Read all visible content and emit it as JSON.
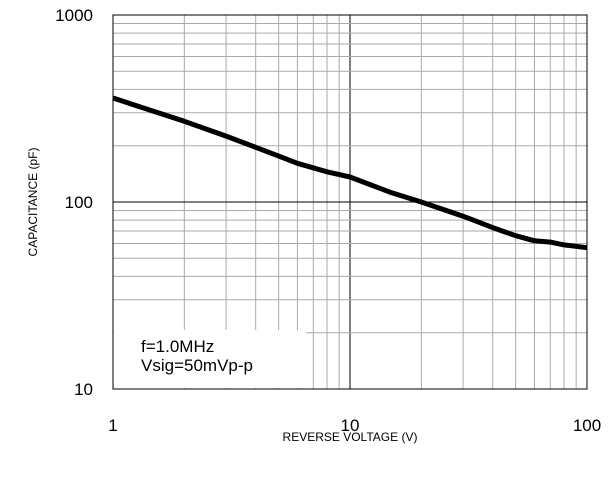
{
  "chart_data": {
    "type": "line",
    "xlabel": "REVERSE VOLTAGE (V)",
    "ylabel": "CAPACITANCE (pF)",
    "x_scale": "log",
    "y_scale": "log",
    "xlim": [
      1,
      100
    ],
    "ylim": [
      10,
      1000
    ],
    "grid": true,
    "x_ticks": [
      {
        "value": 1,
        "label": "1"
      },
      {
        "value": 10,
        "label": "10"
      },
      {
        "value": 100,
        "label": "100"
      }
    ],
    "y_ticks": [
      {
        "value": 10,
        "label": "10"
      },
      {
        "value": 100,
        "label": "100"
      },
      {
        "value": 1000,
        "label": "1000"
      }
    ],
    "annotations": [
      "f=1.0MHz",
      "Vsig=50mVp-p"
    ],
    "series": [
      {
        "x": [
          1,
          2,
          3,
          4,
          5,
          6,
          8,
          10,
          15,
          20,
          30,
          40,
          50,
          60,
          70,
          80,
          100
        ],
        "y": [
          360,
          270,
          225,
          196,
          176,
          161,
          145,
          136,
          112,
          100,
          84,
          73,
          66,
          62,
          61,
          59,
          57
        ]
      }
    ]
  }
}
